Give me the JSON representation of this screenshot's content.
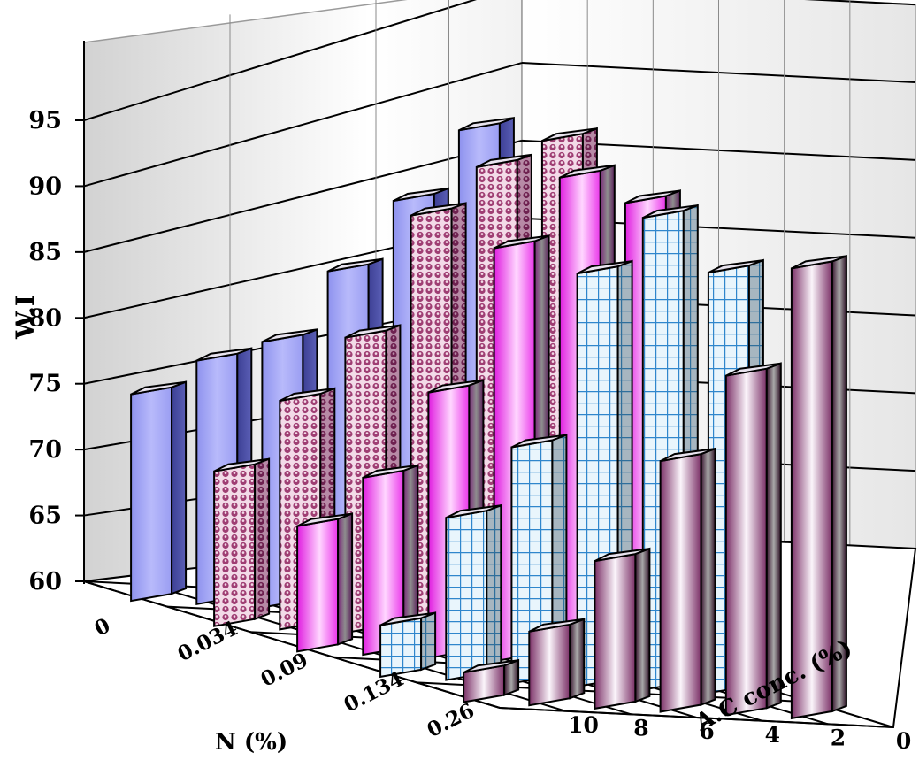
{
  "chart_data": {
    "type": "bar",
    "three_d": true,
    "grid": true,
    "ylabel": "W.I",
    "xlabel": "N (%)",
    "zlabel": "A.C conc. (%)",
    "ylim": [
      60,
      95
    ],
    "yticks": [
      "60",
      "65",
      "70",
      "75",
      "80",
      "85",
      "90",
      "95"
    ],
    "categories": [
      "0",
      "0.034",
      "0.09",
      "0.134",
      "0.26"
    ],
    "series": [
      {
        "name": "10",
        "values": [
          74,
          70.5,
          68.5,
          63.5,
          62
        ]
      },
      {
        "name": "8",
        "values": [
          76.5,
          75.5,
          72,
          71,
          65
        ]
      },
      {
        "name": "6",
        "values": [
          78,
          80,
          78,
          76,
          70
        ]
      },
      {
        "name": "4",
        "values": [
          83,
          88.5,
          88,
          88,
          77
        ]
      },
      {
        "name": "2",
        "values": [
          88,
          92,
          93,
          92,
          83
        ]
      },
      {
        "name": "0",
        "values": [
          93,
          94,
          91.5,
          88.5,
          90.5
        ]
      }
    ],
    "colors": {
      "n0": "#a9acf6",
      "n0034": "#a64d7d",
      "n009": "#f32ef3",
      "n0134": "#dff1fb",
      "n026": "#8e3b6e",
      "grid_line": "#000000",
      "frame": "#a9a9a9"
    }
  }
}
